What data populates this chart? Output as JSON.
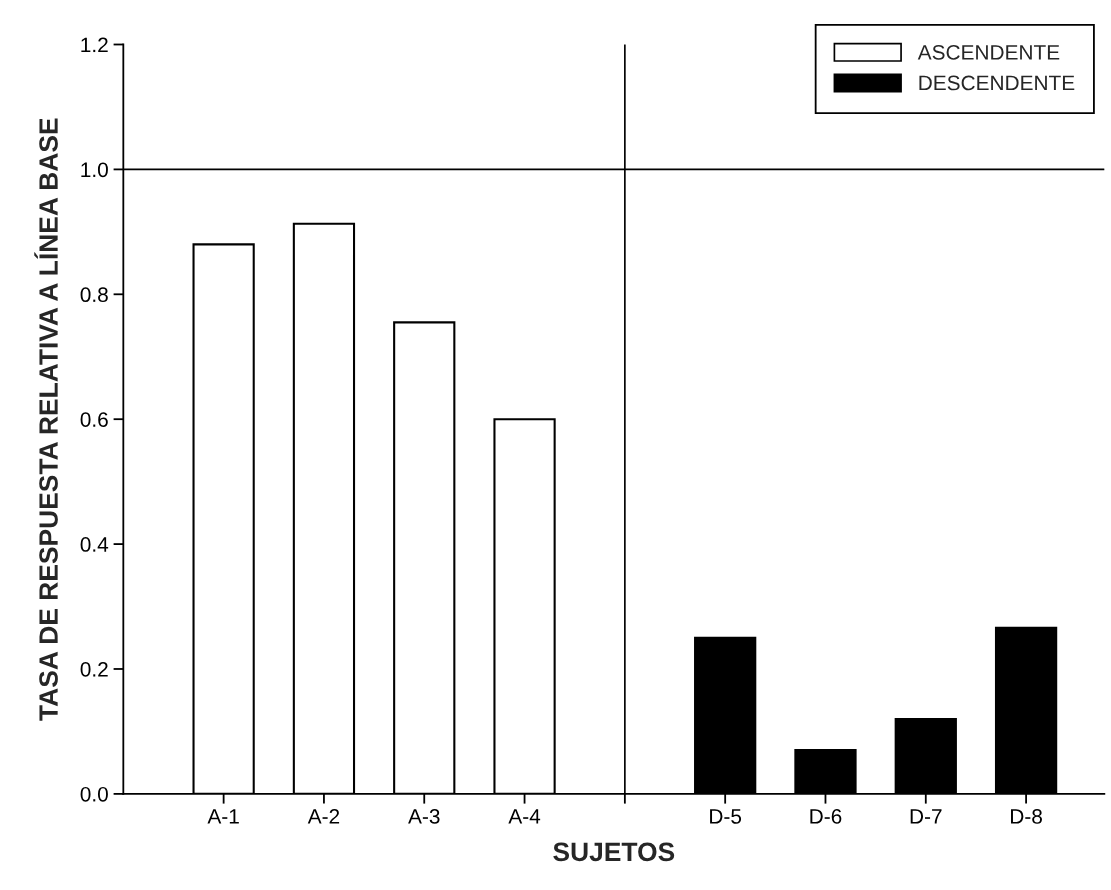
{
  "chart_data": {
    "type": "bar",
    "xlabel": "SUJETOS",
    "ylabel": "TASA DE RESPUESTA RELATIVA A LÍNEA BASE",
    "categories": [
      "A-1",
      "A-2",
      "A-3",
      "A-4",
      null,
      "D-5",
      "D-6",
      "D-7",
      "D-8"
    ],
    "series": [
      {
        "name": "ASCENDENTE",
        "color": "#ffffff",
        "values": [
          0.88,
          0.913,
          0.755,
          0.6,
          null,
          null,
          null,
          null,
          null
        ]
      },
      {
        "name": "DESCENDENTE",
        "color": "#000000",
        "values": [
          null,
          null,
          null,
          null,
          null,
          0.25,
          0.07,
          0.12,
          0.266
        ]
      }
    ],
    "ylim": [
      0,
      1.2
    ],
    "yticks": [
      {
        "value": 0,
        "label": "0.0"
      },
      0.2,
      0.4,
      0.6,
      0.8,
      {
        "value": 1,
        "label": "1.0"
      },
      1.2
    ],
    "ref_lines": [
      {
        "axis": "y",
        "value": 1.0,
        "color": "#000000"
      }
    ],
    "legend": "top right"
  }
}
